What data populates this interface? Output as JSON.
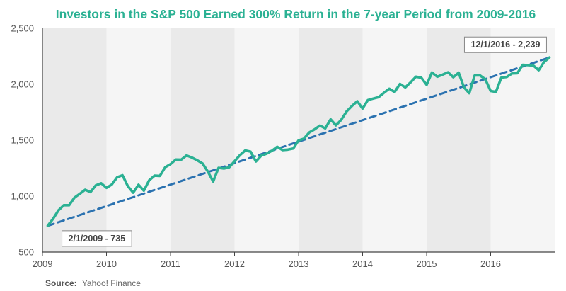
{
  "chart_data": {
    "type": "line",
    "title": "Investors in the S&P 500 Earned 300% Return in the 7-year Period from 2009-2016",
    "xlabel": "",
    "ylabel": "",
    "xlim": [
      "2009-02-01",
      "2016-12-01"
    ],
    "ylim": [
      500,
      2500
    ],
    "y_ticks": [
      500,
      1000,
      1500,
      2000,
      2500
    ],
    "y_tick_labels": [
      "500",
      "1,000",
      "1,500",
      "2,000",
      "2,500"
    ],
    "x_tick_labels": [
      "2009",
      "2010",
      "2011",
      "2012",
      "2013",
      "2014",
      "2015",
      "2016"
    ],
    "x_tick_dates": [
      "2009-01-01",
      "2010-01-01",
      "2011-01-01",
      "2012-01-01",
      "2013-01-01",
      "2014-01-01",
      "2015-01-01",
      "2016-01-01"
    ],
    "grid": false,
    "background_bands": "alternating shaded bands by year",
    "legend": "none",
    "series": [
      {
        "color": "#2bb193",
        "style": "solid",
        "points": [
          [
            "2009-02-01",
            735
          ],
          [
            "2009-03-01",
            798
          ],
          [
            "2009-04-01",
            873
          ],
          [
            "2009-05-01",
            919
          ],
          [
            "2009-06-01",
            919
          ],
          [
            "2009-07-01",
            987
          ],
          [
            "2009-08-01",
            1021
          ],
          [
            "2009-09-01",
            1057
          ],
          [
            "2009-10-01",
            1036
          ],
          [
            "2009-11-01",
            1096
          ],
          [
            "2009-12-01",
            1115
          ],
          [
            "2010-01-01",
            1074
          ],
          [
            "2010-02-01",
            1104
          ],
          [
            "2010-03-01",
            1169
          ],
          [
            "2010-04-01",
            1187
          ],
          [
            "2010-05-01",
            1089
          ],
          [
            "2010-06-01",
            1031
          ],
          [
            "2010-07-01",
            1102
          ],
          [
            "2010-08-01",
            1049
          ],
          [
            "2010-09-01",
            1141
          ],
          [
            "2010-10-01",
            1183
          ],
          [
            "2010-11-01",
            1181
          ],
          [
            "2010-12-01",
            1258
          ],
          [
            "2011-01-01",
            1286
          ],
          [
            "2011-02-01",
            1327
          ],
          [
            "2011-03-01",
            1326
          ],
          [
            "2011-04-01",
            1364
          ],
          [
            "2011-05-01",
            1345
          ],
          [
            "2011-06-01",
            1321
          ],
          [
            "2011-07-01",
            1292
          ],
          [
            "2011-08-01",
            1219
          ],
          [
            "2011-09-01",
            1131
          ],
          [
            "2011-10-01",
            1253
          ],
          [
            "2011-11-01",
            1247
          ],
          [
            "2011-12-01",
            1258
          ],
          [
            "2012-01-01",
            1312
          ],
          [
            "2012-02-01",
            1366
          ],
          [
            "2012-03-01",
            1408
          ],
          [
            "2012-04-01",
            1398
          ],
          [
            "2012-05-01",
            1310
          ],
          [
            "2012-06-01",
            1362
          ],
          [
            "2012-07-01",
            1379
          ],
          [
            "2012-08-01",
            1406
          ],
          [
            "2012-09-01",
            1441
          ],
          [
            "2012-10-01",
            1412
          ],
          [
            "2012-11-01",
            1416
          ],
          [
            "2012-12-01",
            1426
          ],
          [
            "2013-01-01",
            1498
          ],
          [
            "2013-02-01",
            1514
          ],
          [
            "2013-03-01",
            1569
          ],
          [
            "2013-04-01",
            1597
          ],
          [
            "2013-05-01",
            1631
          ],
          [
            "2013-06-01",
            1606
          ],
          [
            "2013-07-01",
            1686
          ],
          [
            "2013-08-01",
            1633
          ],
          [
            "2013-09-01",
            1682
          ],
          [
            "2013-10-01",
            1757
          ],
          [
            "2013-11-01",
            1806
          ],
          [
            "2013-12-01",
            1848
          ],
          [
            "2014-01-01",
            1783
          ],
          [
            "2014-02-01",
            1859
          ],
          [
            "2014-03-01",
            1872
          ],
          [
            "2014-04-01",
            1884
          ],
          [
            "2014-05-01",
            1924
          ],
          [
            "2014-06-01",
            1960
          ],
          [
            "2014-07-01",
            1931
          ],
          [
            "2014-08-01",
            2003
          ],
          [
            "2014-09-01",
            1972
          ],
          [
            "2014-10-01",
            2018
          ],
          [
            "2014-11-01",
            2068
          ],
          [
            "2014-12-01",
            2059
          ],
          [
            "2015-01-01",
            1995
          ],
          [
            "2015-02-01",
            2105
          ],
          [
            "2015-03-01",
            2068
          ],
          [
            "2015-04-01",
            2086
          ],
          [
            "2015-05-01",
            2107
          ],
          [
            "2015-06-01",
            2063
          ],
          [
            "2015-07-01",
            2104
          ],
          [
            "2015-08-01",
            1972
          ],
          [
            "2015-09-01",
            1920
          ],
          [
            "2015-10-01",
            2079
          ],
          [
            "2015-11-01",
            2080
          ],
          [
            "2015-12-01",
            2044
          ],
          [
            "2016-01-01",
            1940
          ],
          [
            "2016-02-01",
            1932
          ],
          [
            "2016-03-01",
            2060
          ],
          [
            "2016-04-01",
            2065
          ],
          [
            "2016-05-01",
            2097
          ],
          [
            "2016-06-01",
            2099
          ],
          [
            "2016-07-01",
            2174
          ],
          [
            "2016-08-01",
            2171
          ],
          [
            "2016-09-01",
            2168
          ],
          [
            "2016-10-01",
            2126
          ],
          [
            "2016-11-01",
            2199
          ],
          [
            "2016-12-01",
            2239
          ]
        ]
      },
      {
        "color": "#2b72b0",
        "style": "dashed",
        "points": [
          [
            "2009-02-01",
            735
          ],
          [
            "2016-12-01",
            2239
          ]
        ]
      }
    ],
    "annotations": [
      {
        "text": "2/1/2009 - 735",
        "x": "2009-02-01",
        "y": 735,
        "placement": "below-right"
      },
      {
        "text": "12/1/2016 - 2,239",
        "x": "2016-12-01",
        "y": 2239,
        "placement": "above-left"
      }
    ],
    "source_label": "Source:",
    "source_value": "Yahoo! Finance"
  }
}
